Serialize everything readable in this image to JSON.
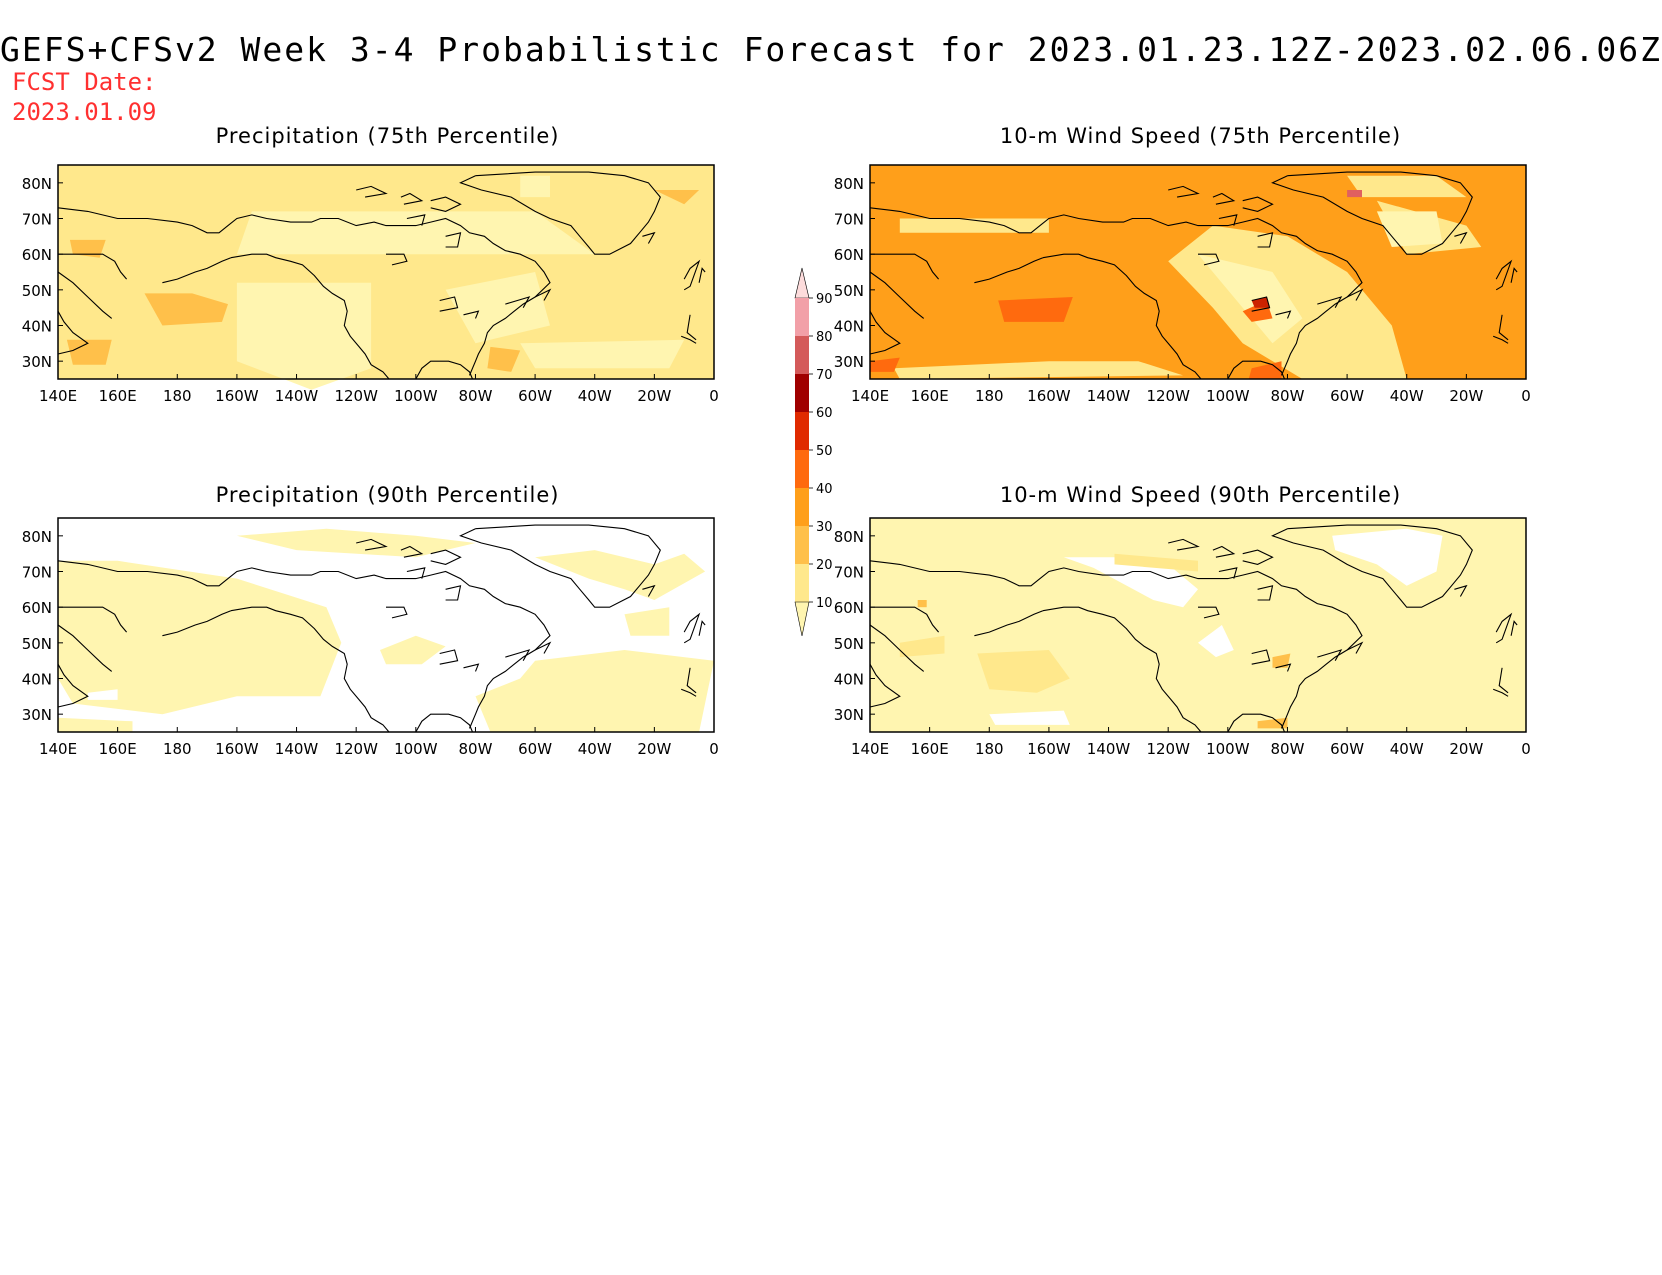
{
  "header": {
    "title": "GEFS+CFSv2 Week 3-4 Probabilistic Forecast for 2023.01.23.12Z-2023.02.06.06Z",
    "fcst_label": "FCST Date:",
    "fcst_value": "2023.01.09"
  },
  "panels": [
    {
      "id": "precip-75",
      "title": "Precipitation (75th Percentile)",
      "base_fill": "#ffe88c",
      "patches": [
        {
          "color": "#fff5b0",
          "pts": [
            [
              205,
              72
            ],
            [
              300,
              72
            ],
            [
              320,
              60
            ],
            [
              200,
              60
            ]
          ]
        },
        {
          "color": "#fff5b0",
          "pts": [
            [
              200,
              52
            ],
            [
              245,
              52
            ],
            [
              245,
              28
            ],
            [
              225,
              22
            ],
            [
              200,
              30
            ]
          ]
        },
        {
          "color": "#fff5b0",
          "pts": [
            [
              270,
              50
            ],
            [
              300,
              55
            ],
            [
              305,
              40
            ],
            [
              280,
              35
            ]
          ]
        },
        {
          "color": "#fff5b0",
          "pts": [
            [
              295,
              35
            ],
            [
              350,
              36
            ],
            [
              345,
              28
            ],
            [
              300,
              28
            ]
          ]
        },
        {
          "color": "#fff5b0",
          "pts": [
            [
              295,
              82
            ],
            [
              305,
              82
            ],
            [
              305,
              76
            ],
            [
              295,
              76
            ]
          ]
        },
        {
          "color": "#ffc04a",
          "pts": [
            [
              169,
              49
            ],
            [
              175,
              40
            ],
            [
              195,
              41
            ],
            [
              197,
              46
            ],
            [
              185,
              49
            ]
          ]
        },
        {
          "color": "#ffc04a",
          "pts": [
            [
              143,
              36
            ],
            [
              158,
              36
            ],
            [
              156,
              29
            ],
            [
              145,
              29
            ]
          ]
        },
        {
          "color": "#ffc04a",
          "pts": [
            [
              144,
              64
            ],
            [
              156,
              64
            ],
            [
              154,
              59
            ],
            [
              145,
              60
            ]
          ]
        },
        {
          "color": "#ffc04a",
          "pts": [
            [
              285,
              34
            ],
            [
              295,
              33
            ],
            [
              292,
              27
            ],
            [
              284,
              28
            ]
          ]
        },
        {
          "color": "#ffc04a",
          "pts": [
            [
              340,
              78
            ],
            [
              355,
              78
            ],
            [
              350,
              74
            ]
          ]
        }
      ]
    },
    {
      "id": "wind-75",
      "title": "10-m Wind Speed (75th Percentile)",
      "base_fill": "#ff9f1a",
      "patches": [
        {
          "color": "#ffe88c",
          "pts": [
            [
              240,
              58
            ],
            [
              255,
              45
            ],
            [
              265,
              35
            ],
            [
              285,
              25
            ],
            [
              320,
              25
            ],
            [
              315,
              40
            ],
            [
              300,
              55
            ],
            [
              280,
              65
            ],
            [
              255,
              68
            ]
          ]
        },
        {
          "color": "#fff5b0",
          "pts": [
            [
              250,
              60
            ],
            [
              265,
              45
            ],
            [
              275,
              35
            ],
            [
              285,
              42
            ],
            [
              275,
              55
            ]
          ]
        },
        {
          "color": "#ffe88c",
          "pts": [
            [
              148,
              28
            ],
            [
              200,
              30
            ],
            [
              230,
              30
            ],
            [
              245,
              26
            ],
            [
              150,
              25
            ]
          ]
        },
        {
          "color": "#ffe88c",
          "pts": [
            [
              300,
              82
            ],
            [
              330,
              82
            ],
            [
              340,
              76
            ],
            [
              305,
              76
            ]
          ]
        },
        {
          "color": "#ffe88c",
          "pts": [
            [
              310,
              75
            ],
            [
              340,
              68
            ],
            [
              345,
              62
            ],
            [
              320,
              60
            ]
          ]
        },
        {
          "color": "#ffe88c",
          "pts": [
            [
              150,
              70
            ],
            [
              200,
              70
            ],
            [
              200,
              66
            ],
            [
              150,
              66
            ]
          ]
        },
        {
          "color": "#fff5b0",
          "pts": [
            [
              310,
              72
            ],
            [
              330,
              72
            ],
            [
              332,
              63
            ],
            [
              315,
              62
            ]
          ]
        },
        {
          "color": "#ff6a0e",
          "pts": [
            [
              183,
              47
            ],
            [
              208,
              48
            ],
            [
              205,
              41
            ],
            [
              185,
              41
            ]
          ]
        },
        {
          "color": "#ff6a0e",
          "pts": [
            [
              140,
              30
            ],
            [
              150,
              31
            ],
            [
              148,
              27
            ],
            [
              140,
              27
            ]
          ]
        },
        {
          "color": "#ff6a0e",
          "pts": [
            [
              265,
              44
            ],
            [
              273,
              47
            ],
            [
              275,
              42
            ],
            [
              268,
              41
            ]
          ]
        },
        {
          "color": "#ff6a0e",
          "pts": [
            [
              268,
              28
            ],
            [
              278,
              30
            ],
            [
              278,
              25
            ],
            [
              267,
              25
            ]
          ]
        },
        {
          "color": "#cc2200",
          "pts": [
            [
              268,
              47
            ],
            [
              273,
              48
            ],
            [
              274,
              45
            ],
            [
              269,
              45
            ]
          ]
        },
        {
          "color": "#e06060",
          "pts": [
            [
              300,
              78
            ],
            [
              305,
              78
            ],
            [
              305,
              76
            ],
            [
              300,
              76
            ]
          ]
        }
      ]
    },
    {
      "id": "precip-90",
      "title": "Precipitation (90th Percentile)",
      "base_fill": "#ffffff",
      "patches": [
        {
          "color": "#fff5b0",
          "pts": [
            [
              140,
              73
            ],
            [
              160,
              73
            ],
            [
              200,
              68
            ],
            [
              230,
              60
            ],
            [
              235,
              50
            ],
            [
              228,
              35
            ],
            [
              200,
              35
            ],
            [
              175,
              30
            ],
            [
              145,
              33
            ],
            [
              140,
              40
            ]
          ]
        },
        {
          "color": "#fff5b0",
          "pts": [
            [
              140,
              29
            ],
            [
              165,
              28
            ],
            [
              165,
              25
            ],
            [
              140,
              25
            ]
          ]
        },
        {
          "color": "#fff5b0",
          "pts": [
            [
              200,
              80
            ],
            [
              230,
              82
            ],
            [
              260,
              80
            ],
            [
              280,
              78
            ],
            [
              260,
              74
            ],
            [
              220,
              76
            ]
          ]
        },
        {
          "color": "#fff5b0",
          "pts": [
            [
              280,
              35
            ],
            [
              295,
              40
            ],
            [
              300,
              45
            ],
            [
              330,
              48
            ],
            [
              360,
              45
            ],
            [
              355,
              25
            ],
            [
              285,
              25
            ]
          ]
        },
        {
          "color": "#fff5b0",
          "pts": [
            [
              300,
              74
            ],
            [
              320,
              76
            ],
            [
              340,
              72
            ],
            [
              350,
              75
            ],
            [
              357,
              70
            ],
            [
              340,
              62
            ],
            [
              330,
              65
            ],
            [
              318,
              68
            ]
          ]
        },
        {
          "color": "#fff5b0",
          "pts": [
            [
              248,
              48
            ],
            [
              260,
              52
            ],
            [
              270,
              49
            ],
            [
              262,
              44
            ],
            [
              250,
              44
            ]
          ]
        },
        {
          "color": "#fff5b0",
          "pts": [
            [
              330,
              58
            ],
            [
              345,
              60
            ],
            [
              345,
              52
            ],
            [
              332,
              52
            ]
          ]
        },
        {
          "color": "#ffffff",
          "pts": [
            [
              150,
              36
            ],
            [
              160,
              37
            ],
            [
              160,
              34
            ],
            [
              150,
              34
            ]
          ]
        },
        {
          "color": "#ffffff",
          "pts": [
            [
              205,
              30
            ],
            [
              228,
              30
            ],
            [
              228,
              27
            ],
            [
              205,
              27
            ]
          ]
        }
      ]
    },
    {
      "id": "wind-90",
      "title": "10-m Wind Speed (90th Percentile)",
      "base_fill": "#fff5b0",
      "patches": [
        {
          "color": "#ffffff",
          "pts": [
            [
              205,
              74
            ],
            [
              215,
              71
            ],
            [
              235,
              62
            ],
            [
              245,
              60
            ],
            [
              250,
              65
            ],
            [
              240,
              72
            ],
            [
              225,
              74
            ]
          ]
        },
        {
          "color": "#ffffff",
          "pts": [
            [
              250,
              50
            ],
            [
              258,
              55
            ],
            [
              262,
              48
            ],
            [
              256,
              46
            ]
          ]
        },
        {
          "color": "#ffffff",
          "pts": [
            [
              180,
              30
            ],
            [
              205,
              31
            ],
            [
              207,
              27
            ],
            [
              182,
              27
            ]
          ]
        },
        {
          "color": "#ffffff",
          "pts": [
            [
              295,
              80
            ],
            [
              320,
              82
            ],
            [
              332,
              80
            ],
            [
              330,
              70
            ],
            [
              320,
              66
            ],
            [
              310,
              72
            ],
            [
              296,
              76
            ]
          ]
        },
        {
          "color": "#ffe88c",
          "pts": [
            [
              176,
              47
            ],
            [
              200,
              48
            ],
            [
              207,
              40
            ],
            [
              196,
              36
            ],
            [
              180,
              37
            ]
          ]
        },
        {
          "color": "#ffe88c",
          "pts": [
            [
              150,
              50
            ],
            [
              165,
              52
            ],
            [
              165,
              47
            ],
            [
              150,
              46
            ]
          ]
        },
        {
          "color": "#ffe88c",
          "pts": [
            [
              222,
              75
            ],
            [
              250,
              73
            ],
            [
              250,
              70
            ],
            [
              222,
              72
            ]
          ]
        },
        {
          "color": "#ffc04a",
          "pts": [
            [
              156,
              62
            ],
            [
              159,
              62
            ],
            [
              159,
              60
            ],
            [
              156,
              60
            ]
          ]
        },
        {
          "color": "#ffc04a",
          "pts": [
            [
              275,
              46
            ],
            [
              281,
              47
            ],
            [
              280,
              43
            ],
            [
              275,
              43
            ]
          ]
        },
        {
          "color": "#ffc04a",
          "pts": [
            [
              270,
              28
            ],
            [
              280,
              29
            ],
            [
              280,
              26
            ],
            [
              270,
              26
            ]
          ]
        }
      ]
    }
  ],
  "axes": {
    "lon_labels": [
      "140E",
      "160E",
      "180",
      "160W",
      "140W",
      "120W",
      "100W",
      "80W",
      "60W",
      "40W",
      "20W",
      "0"
    ],
    "lat_labels": [
      "30N",
      "40N",
      "50N",
      "60N",
      "70N",
      "80N"
    ]
  },
  "colorbar": {
    "levels": [
      "10",
      "20",
      "30",
      "40",
      "50",
      "60",
      "70",
      "80",
      "90"
    ],
    "colors": [
      "#fff5b0",
      "#ffe88c",
      "#ffc04a",
      "#ff9f1a",
      "#ff6a0e",
      "#e02a00",
      "#a00000",
      "#d45a5a",
      "#f2a0a8",
      "#fddcdc"
    ]
  }
}
